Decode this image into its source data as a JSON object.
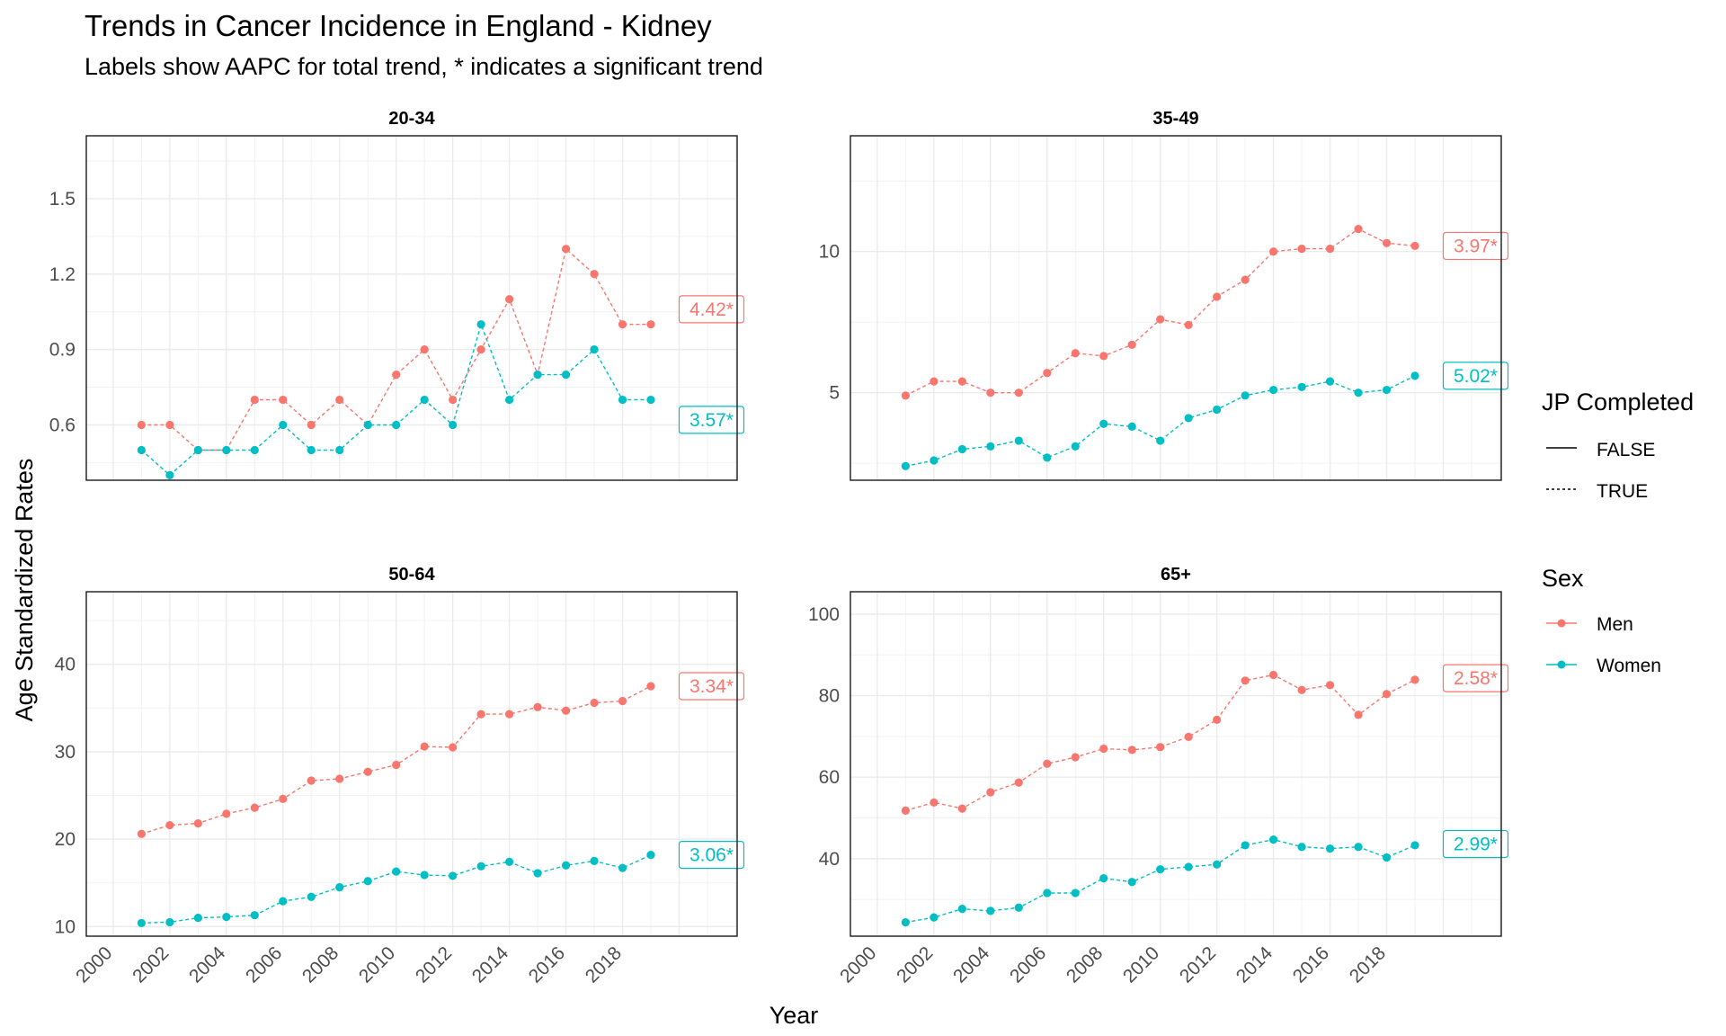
{
  "title": "Trends in Cancer Incidence in England - Kidney",
  "subtitle": "Labels show AAPC for total trend, * indicates a significant trend",
  "legend": {
    "jp_title": "JP Completed",
    "jp_items": [
      {
        "label": "FALSE",
        "linetype": "solid"
      },
      {
        "label": "TRUE",
        "linetype": "dotted"
      }
    ],
    "sex_title": "Sex",
    "sex_items": [
      {
        "label": "Men",
        "color": "#F8766D"
      },
      {
        "label": "Women",
        "color": "#00BFC4"
      }
    ]
  },
  "chart_data": [
    {
      "type": "line",
      "title": "20-34",
      "xlabel": "Year",
      "ylabel": "Age Standardized Rates",
      "x": [
        2001,
        2002,
        2003,
        2004,
        2005,
        2006,
        2007,
        2008,
        2009,
        2010,
        2011,
        2012,
        2013,
        2014,
        2015,
        2016,
        2017,
        2018,
        2019
      ],
      "xlim": [
        1999.05,
        2022.05
      ],
      "ylim": [
        0.38,
        1.75
      ],
      "y_ticks": [
        0.6,
        0.9,
        1.2,
        1.5
      ],
      "y_tick_labels": [
        "0.6",
        "0.9",
        "1.2",
        "1.5"
      ],
      "x_ticks": [
        2000,
        2002,
        2004,
        2006,
        2008,
        2010,
        2012,
        2014,
        2016,
        2018
      ],
      "x_tick_labels": [
        "2000",
        "2002",
        "2004",
        "2006",
        "2008",
        "2010",
        "2012",
        "2014",
        "2016",
        "2018"
      ],
      "grid": true,
      "series": [
        {
          "name": "Men",
          "color": "#F8766D",
          "values": [
            0.6,
            0.6,
            0.5,
            0.5,
            0.7,
            0.7,
            0.6,
            0.7,
            0.6,
            0.8,
            0.9,
            0.7,
            0.9,
            1.1,
            0.8,
            1.3,
            1.2,
            1.0,
            1.0
          ],
          "label": "4.42*",
          "label_y": 1.06
        },
        {
          "name": "Women",
          "color": "#00BFC4",
          "values": [
            0.5,
            0.4,
            0.5,
            0.5,
            0.5,
            0.6,
            0.5,
            0.5,
            0.6,
            0.6,
            0.7,
            0.6,
            1.0,
            0.7,
            0.8,
            0.8,
            0.9,
            0.7,
            0.7
          ],
          "label": "3.57*",
          "label_y": 0.62
        }
      ]
    },
    {
      "type": "line",
      "title": "35-49",
      "xlabel": "Year",
      "ylabel": "Age Standardized Rates",
      "x": [
        2001,
        2002,
        2003,
        2004,
        2005,
        2006,
        2007,
        2008,
        2009,
        2010,
        2011,
        2012,
        2013,
        2014,
        2015,
        2016,
        2017,
        2018,
        2019
      ],
      "xlim": [
        1999.05,
        2022.05
      ],
      "ylim": [
        1.9,
        14.1
      ],
      "y_ticks": [
        5,
        10
      ],
      "y_tick_labels": [
        "5",
        "10"
      ],
      "x_ticks": [
        2000,
        2002,
        2004,
        2006,
        2008,
        2010,
        2012,
        2014,
        2016,
        2018
      ],
      "x_tick_labels": [
        "2000",
        "2002",
        "2004",
        "2006",
        "2008",
        "2010",
        "2012",
        "2014",
        "2016",
        "2018"
      ],
      "grid": true,
      "series": [
        {
          "name": "Men",
          "color": "#F8766D",
          "values": [
            4.9,
            5.4,
            5.4,
            5.0,
            5.0,
            5.7,
            6.4,
            6.3,
            6.7,
            7.6,
            7.4,
            8.4,
            9.0,
            10.0,
            10.1,
            10.1,
            10.8,
            10.3,
            10.2
          ],
          "label": "3.97*",
          "label_y": 10.2
        },
        {
          "name": "Women",
          "color": "#00BFC4",
          "values": [
            2.4,
            2.6,
            3.0,
            3.1,
            3.3,
            2.7,
            3.1,
            3.9,
            3.8,
            3.3,
            4.1,
            4.4,
            4.9,
            5.1,
            5.2,
            5.4,
            5.0,
            5.1,
            5.6
          ],
          "label": "5.02*",
          "label_y": 5.6
        }
      ]
    },
    {
      "type": "line",
      "title": "50-64",
      "xlabel": "Year",
      "ylabel": "Age Standardized Rates",
      "x": [
        2001,
        2002,
        2003,
        2004,
        2005,
        2006,
        2007,
        2008,
        2009,
        2010,
        2011,
        2012,
        2013,
        2014,
        2015,
        2016,
        2017,
        2018,
        2019
      ],
      "xlim": [
        1999.05,
        2022.05
      ],
      "ylim": [
        8.9,
        48.3
      ],
      "y_ticks": [
        10,
        20,
        30,
        40
      ],
      "y_tick_labels": [
        "10",
        "20",
        "30",
        "40"
      ],
      "x_ticks": [
        2000,
        2002,
        2004,
        2006,
        2008,
        2010,
        2012,
        2014,
        2016,
        2018
      ],
      "x_tick_labels": [
        "2000",
        "2002",
        "2004",
        "2006",
        "2008",
        "2010",
        "2012",
        "2014",
        "2016",
        "2018"
      ],
      "grid": true,
      "series": [
        {
          "name": "Men",
          "color": "#F8766D",
          "values": [
            20.6,
            21.6,
            21.8,
            22.9,
            23.6,
            24.6,
            26.7,
            26.9,
            27.7,
            28.5,
            30.6,
            30.5,
            34.3,
            34.3,
            35.1,
            34.7,
            35.6,
            35.8,
            37.5
          ],
          "label": "3.34*",
          "label_y": 37.5
        },
        {
          "name": "Women",
          "color": "#00BFC4",
          "values": [
            10.4,
            10.5,
            11.0,
            11.1,
            11.3,
            12.9,
            13.4,
            14.5,
            15.2,
            16.3,
            15.9,
            15.8,
            16.9,
            17.4,
            16.1,
            17.0,
            17.5,
            16.7,
            18.2
          ],
          "label": "3.06*",
          "label_y": 18.2
        }
      ]
    },
    {
      "type": "line",
      "title": "65+",
      "xlabel": "Year",
      "ylabel": "Age Standardized Rates",
      "x": [
        2001,
        2002,
        2003,
        2004,
        2005,
        2006,
        2007,
        2008,
        2009,
        2010,
        2011,
        2012,
        2013,
        2014,
        2015,
        2016,
        2017,
        2018,
        2019
      ],
      "xlim": [
        1999.05,
        2022.05
      ],
      "ylim": [
        21.0,
        105.5
      ],
      "y_ticks": [
        40,
        60,
        80,
        100
      ],
      "y_tick_labels": [
        "40",
        "60",
        "80",
        "100"
      ],
      "x_ticks": [
        2000,
        2002,
        2004,
        2006,
        2008,
        2010,
        2012,
        2014,
        2016,
        2018
      ],
      "x_tick_labels": [
        "2000",
        "2002",
        "2004",
        "2006",
        "2008",
        "2010",
        "2012",
        "2014",
        "2016",
        "2018"
      ],
      "grid": true,
      "series": [
        {
          "name": "Men",
          "color": "#F8766D",
          "values": [
            51.8,
            53.8,
            52.3,
            56.3,
            58.7,
            63.3,
            64.9,
            67.0,
            66.7,
            67.4,
            69.9,
            74.1,
            83.7,
            85.1,
            81.4,
            82.6,
            75.3,
            80.4,
            83.9
          ],
          "label": "2.58*",
          "label_y": 84.3
        },
        {
          "name": "Women",
          "color": "#00BFC4",
          "values": [
            24.4,
            25.6,
            27.7,
            27.2,
            28.0,
            31.6,
            31.6,
            35.2,
            34.3,
            37.4,
            38.0,
            38.6,
            43.3,
            44.7,
            42.9,
            42.5,
            42.9,
            40.3,
            43.3
          ],
          "label": "2.99*",
          "label_y": 43.6
        }
      ]
    }
  ]
}
